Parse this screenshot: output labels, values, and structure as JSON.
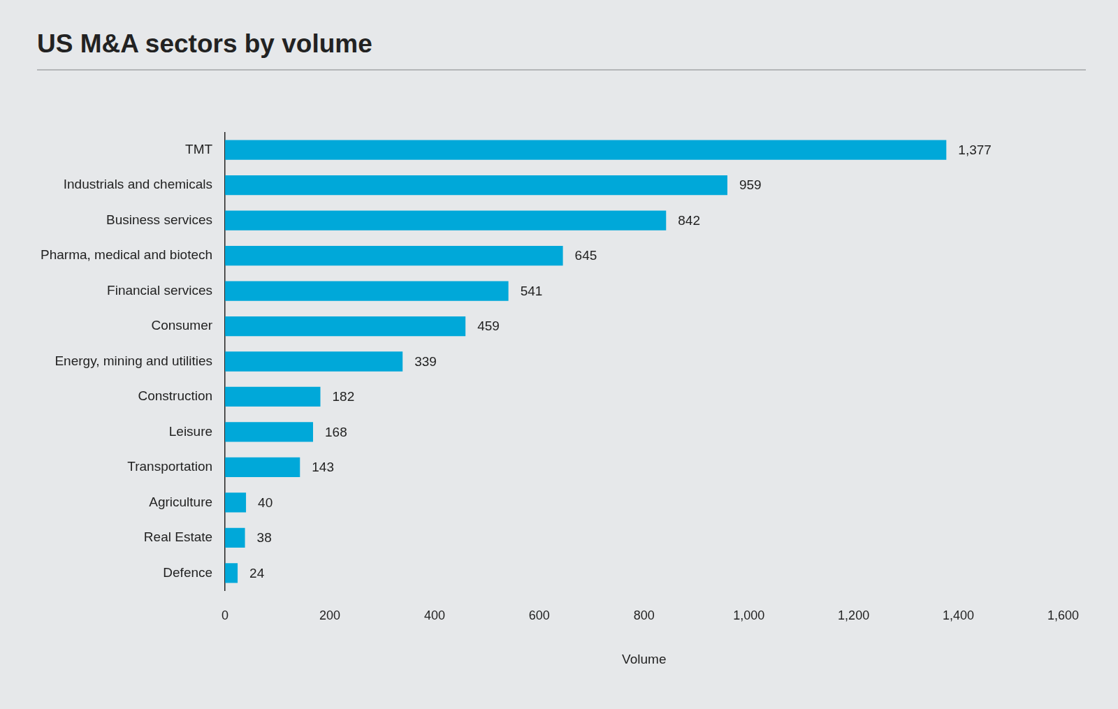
{
  "chart_data": {
    "type": "bar",
    "title": "US M&A sectors by volume",
    "orientation": "horizontal",
    "x_label": "Volume",
    "categories": [
      "TMT",
      "Industrials and chemicals",
      "Business services",
      "Pharma, medical and biotech",
      "Financial services",
      "Consumer",
      "Energy, mining and utilities",
      "Construction",
      "Leisure",
      "Transportation",
      "Agriculture",
      "Real Estate",
      "Defence"
    ],
    "values": [
      1377,
      959,
      842,
      645,
      541,
      459,
      339,
      182,
      168,
      143,
      40,
      38,
      24
    ],
    "value_labels": [
      "1,377",
      "959",
      "842",
      "645",
      "541",
      "459",
      "339",
      "182",
      "168",
      "143",
      "40",
      "38",
      "24"
    ],
    "color": "#00a8d9",
    "xlim": [
      0,
      1600
    ],
    "xticks": [
      0,
      200,
      400,
      600,
      800,
      {
        "value": 1000,
        "label": "1,000"
      },
      {
        "value": 1200,
        "label": "1,200"
      },
      {
        "value": 1400,
        "label": "1,400"
      },
      {
        "value": 1600,
        "label": "1,600"
      }
    ],
    "grid": false,
    "data_labels": true
  }
}
